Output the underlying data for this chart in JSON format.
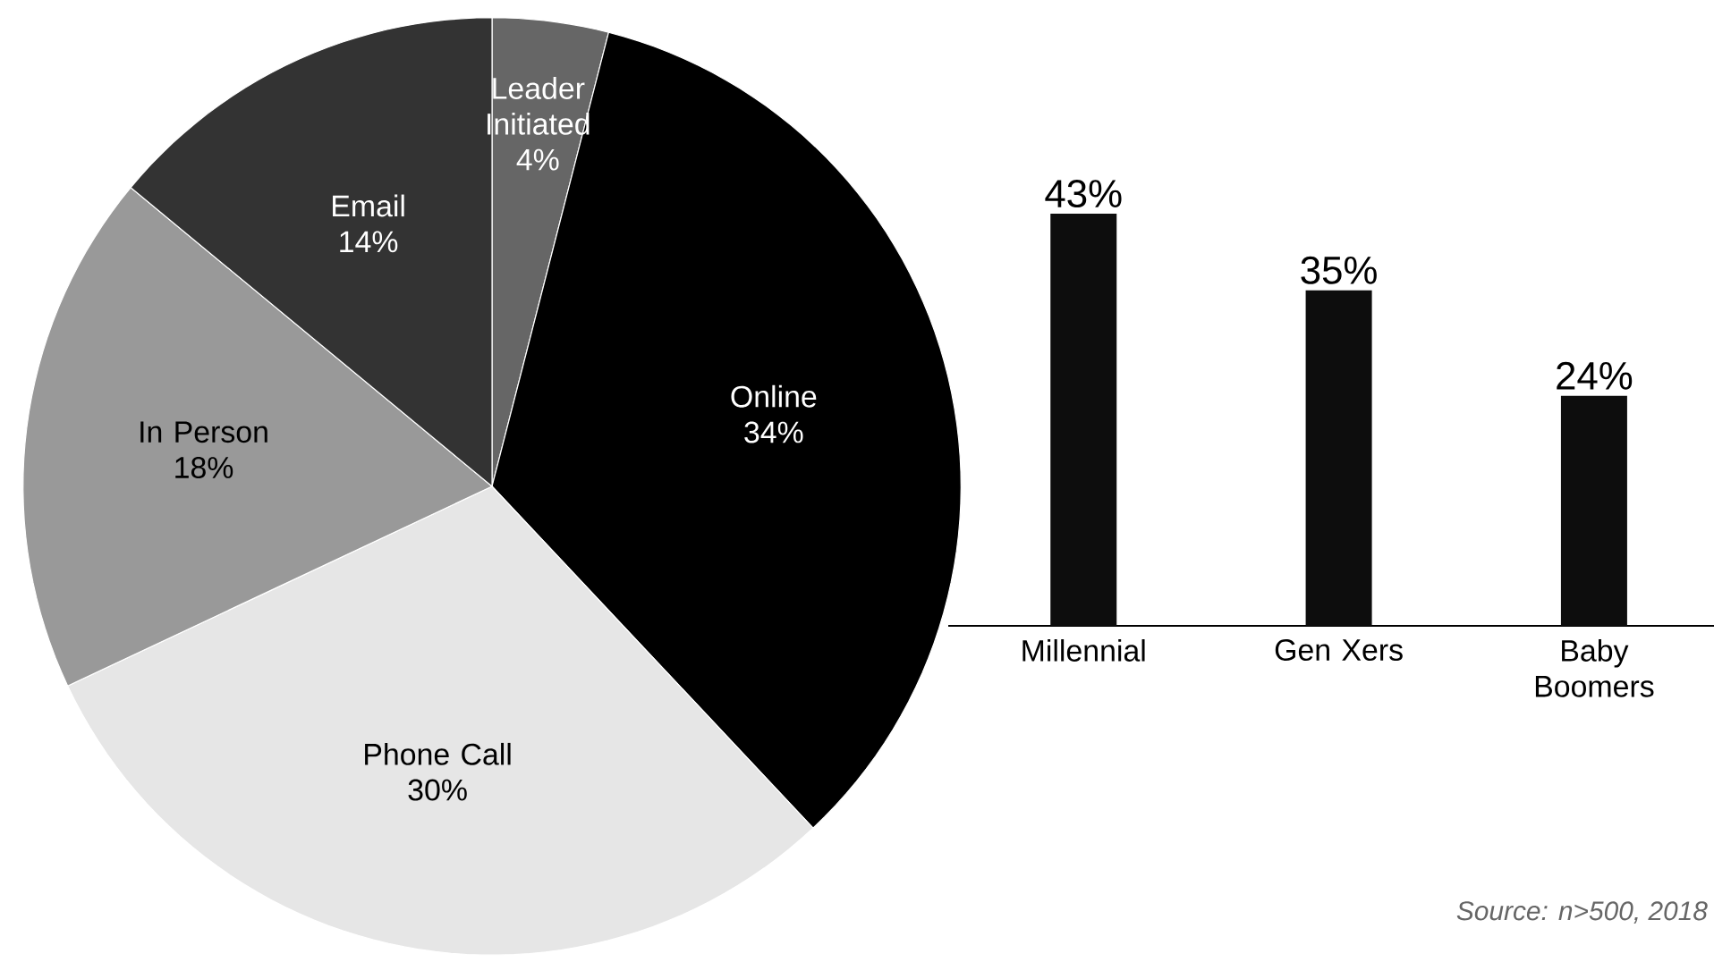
{
  "chart_data": [
    {
      "type": "pie",
      "categories": [
        "Leader Initiated",
        "Online",
        "Phone Call",
        "In Person",
        "Email"
      ],
      "values": [
        4,
        34,
        30,
        18,
        14
      ],
      "value_labels": [
        "4%",
        "34%",
        "30%",
        "18%",
        "14%"
      ],
      "colors": [
        "#666666",
        "#000000",
        "#e6e6e6",
        "#999999",
        "#333333"
      ]
    },
    {
      "type": "bar",
      "categories": [
        "Millennial",
        "Gen Xers",
        "Baby Boomers"
      ],
      "values": [
        43,
        35,
        24
      ],
      "value_labels": [
        "43%",
        "35%",
        "24%"
      ],
      "color": "#0d0d0d",
      "annotations": [
        "Source: n>500, 2018"
      ]
    }
  ]
}
